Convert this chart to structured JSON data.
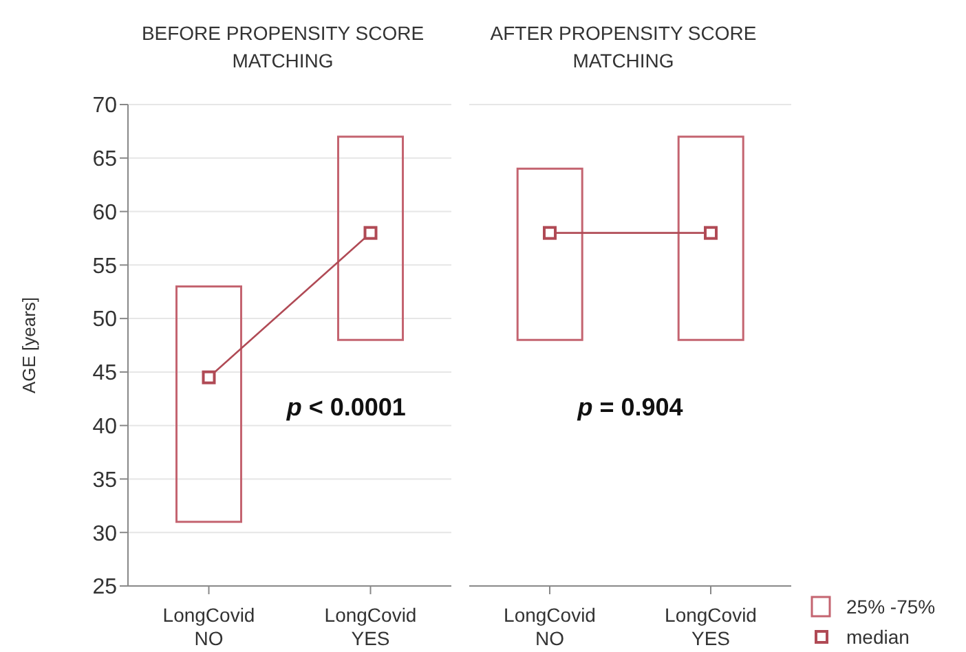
{
  "chart_data": [
    {
      "type": "bar",
      "title": "BEFORE PROPENSITY SCORE MATCHING",
      "ylabel": "AGE [years]",
      "categories": [
        "LongCovid NO",
        "LongCovid YES"
      ],
      "series": [
        {
          "type": "line",
          "color": "#b04a55",
          "values": [
            44.5,
            58
          ]
        },
        {
          "type": "bar",
          "color": "#c46470",
          "base": [
            31,
            48
          ],
          "values": [
            22,
            19
          ]
        }
      ],
      "ylim": [
        25,
        70
      ],
      "yticks": [
        25,
        30,
        35,
        40,
        45,
        50,
        55,
        60,
        65,
        70
      ],
      "grid": "y",
      "marker": "square",
      "annotations": [
        "p < 0.0001"
      ]
    },
    {
      "type": "bar",
      "title": "AFTER PROPENSITY SCORE MATCHING",
      "categories": [
        "LongCovid NO",
        "LongCovid YES"
      ],
      "series": [
        {
          "type": "line",
          "name": "median",
          "color": "#b04a55",
          "values": [
            58,
            58
          ]
        },
        {
          "type": "bar",
          "name": "25% -75%",
          "color": "#c46470",
          "base": [
            48,
            48
          ],
          "values": [
            16,
            19
          ]
        }
      ],
      "ylim": [
        25,
        70
      ],
      "yticks": [
        25,
        30,
        35,
        40,
        45,
        50,
        55,
        60,
        65,
        70
      ],
      "grid": "y",
      "marker": "square",
      "tick_labels": "x",
      "legend": "bottom right",
      "annotations": [
        "p = 0.904"
      ]
    }
  ]
}
